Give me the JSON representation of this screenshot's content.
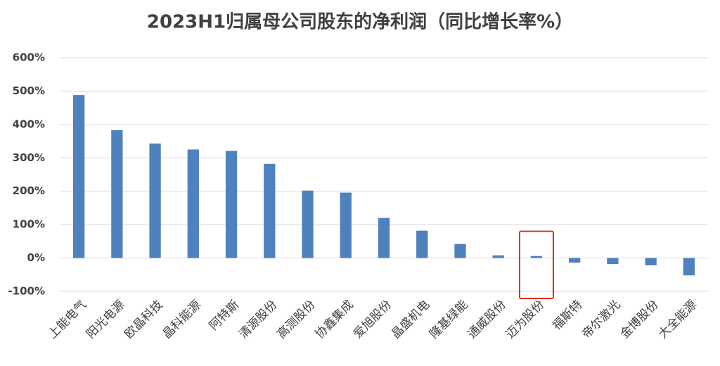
{
  "chart_data": {
    "type": "bar",
    "title": "2023H1归属母公司股东的净利润（同比增长率%）",
    "categories": [
      "上能电气",
      "阳光电源",
      "欧晶科技",
      "晶科能源",
      "阿特斯",
      "清源股份",
      "高测股份",
      "协鑫集成",
      "爱旭股份",
      "晶盛机电",
      "隆基绿能",
      "通威股份",
      "迈为股份",
      "福斯特",
      "帝尔激光",
      "金博股份",
      "大全能源"
    ],
    "values": [
      488,
      383,
      343,
      325,
      321,
      282,
      202,
      196,
      120,
      82,
      42,
      8,
      6,
      -14,
      -18,
      -22,
      -52
    ],
    "color": "#4f81bd",
    "ylim": [
      -100,
      600
    ],
    "yticks": [
      {
        "value": -100,
        "label": "-100%"
      },
      {
        "value": 0,
        "label": "0%"
      },
      {
        "value": 100,
        "label": "100%"
      },
      {
        "value": 200,
        "label": "200%"
      },
      {
        "value": 300,
        "label": "300%"
      },
      {
        "value": 400,
        "label": "400%"
      },
      {
        "value": 500,
        "label": "500%"
      },
      {
        "value": 600,
        "label": "600%"
      }
    ],
    "grid": true,
    "highlight": {
      "category": 12,
      "color": "#e0301e"
    }
  }
}
